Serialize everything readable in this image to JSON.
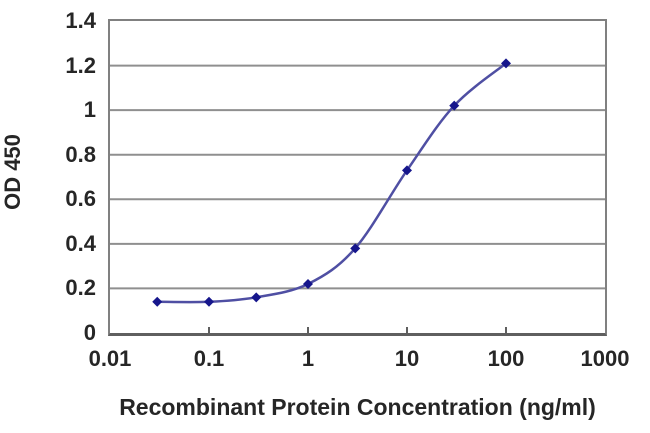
{
  "chart_data": {
    "type": "line",
    "title": "",
    "xlabel": "Recombinant Protein Concentration (ng/ml)",
    "ylabel": "OD 450",
    "x_scale": "log",
    "xlim": [
      0.01,
      1000
    ],
    "ylim": [
      0,
      1.4
    ],
    "x_ticks": [
      0.01,
      0.1,
      1,
      10,
      100,
      1000
    ],
    "y_ticks": [
      0,
      0.2,
      0.4,
      0.6,
      0.8,
      1,
      1.2,
      1.4
    ],
    "grid": "horizontal",
    "legend": "none",
    "marker": "diamond",
    "x": [
      0.03,
      0.1,
      0.3,
      1,
      3,
      10,
      30,
      100
    ],
    "series": [
      {
        "name": "OD 450",
        "values": [
          0.14,
          0.14,
          0.16,
          0.22,
          0.38,
          0.73,
          1.02,
          1.21
        ]
      }
    ],
    "colors": {
      "line": "#4f4fa3",
      "marker": "#16168c",
      "grid": "#8f8f8f",
      "frame": "#808080",
      "axis": "#5f5f5f",
      "text": "#262626",
      "background": "#ffffff"
    }
  }
}
